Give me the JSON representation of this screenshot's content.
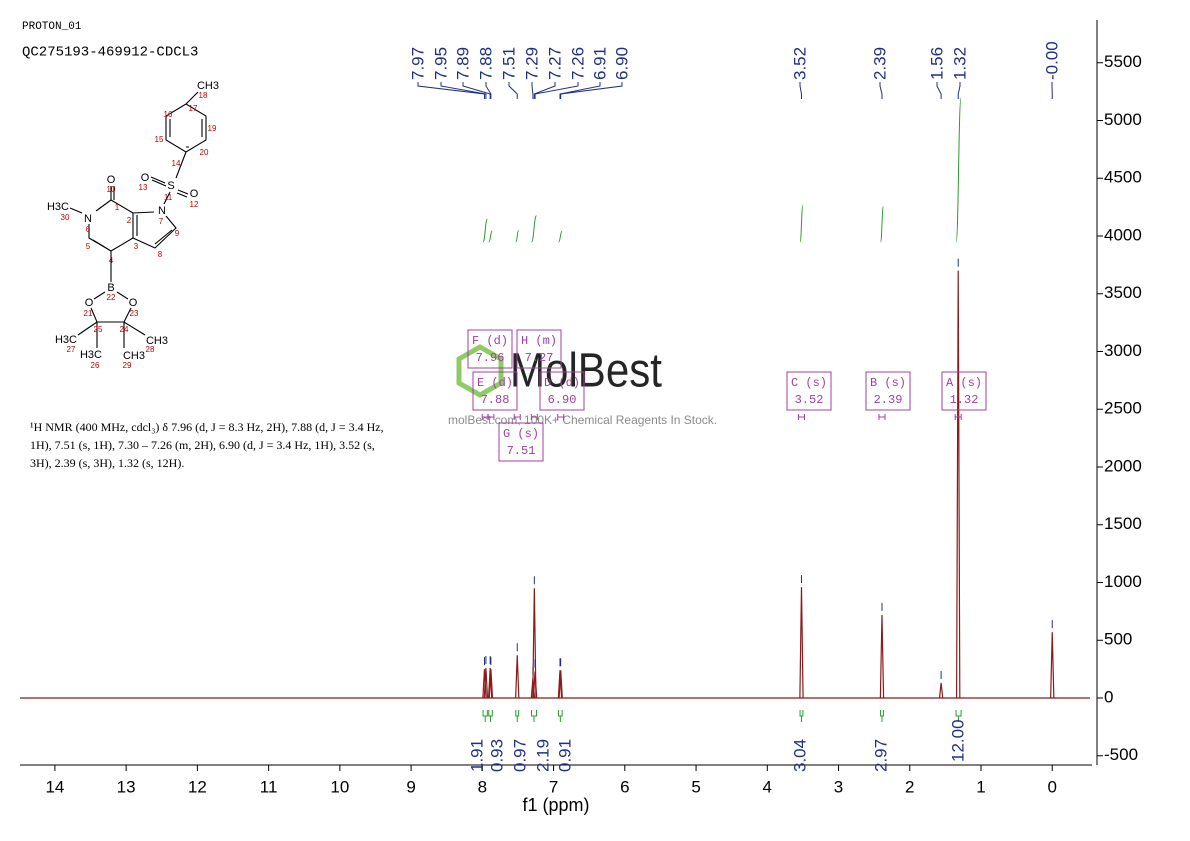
{
  "header": {
    "title": "PROTON_01",
    "sample": "QC275193-469912-CDCL3"
  },
  "structure": {
    "labels": [
      "CH3",
      "18",
      "17",
      "16",
      "19",
      "15",
      "20",
      "14",
      "O",
      "13",
      "S",
      "O",
      "11",
      "12",
      "O",
      "10",
      "1",
      "N",
      "7",
      "H3C",
      "30",
      "N",
      "6",
      "2",
      "9",
      "5",
      "3",
      "8",
      "4",
      "B",
      "22",
      "O",
      "O",
      "21",
      "23",
      "25",
      "24",
      "H3C",
      "CH3",
      "27",
      "28",
      "H3C",
      "CH3",
      "26",
      "29"
    ]
  },
  "description": {
    "lines": [
      "¹H NMR (400 MHz, cdcl₃) δ 7.96 (d, J = 8.3 Hz, 2H), 7.88 (d, J = 3.4 Hz,",
      "1H), 7.51 (s, 1H), 7.30 – 7.26 (m, 2H), 6.90 (d, J = 3.4 Hz, 1H), 3.52 (s,",
      "3H), 2.39 (s, 3H), 1.32 (s, 12H)."
    ]
  },
  "watermark": {
    "logo": "MolBest",
    "tagline": "molBest.com, 100K+ Chemical Reagents In Stock."
  },
  "chart_data": {
    "type": "nmr",
    "x_label": "f1 (ppm)",
    "xlim": [
      14.49,
      -0.53
    ],
    "xticks": [
      14,
      13,
      12,
      11,
      10,
      9,
      8,
      7,
      6,
      5,
      4,
      3,
      2,
      1,
      0
    ],
    "ylim": [
      -580,
      5870
    ],
    "yticks": [
      -500,
      0,
      500,
      1000,
      1500,
      2000,
      2500,
      3000,
      3500,
      4000,
      4500,
      5000,
      5500
    ],
    "color": "#8b1a1a",
    "label_color": "#1f2f86",
    "integral_color": "#2e9a2e",
    "multiplet_color": "#a040a0",
    "peaks": [
      {
        "ppm": 7.97,
        "label": "7.97",
        "height": 250
      },
      {
        "ppm": 7.95,
        "label": "7.95",
        "height": 260
      },
      {
        "ppm": 7.89,
        "label": "7.89",
        "height": 260
      },
      {
        "ppm": 7.88,
        "label": "7.88",
        "height": 250
      },
      {
        "ppm": 7.51,
        "label": "7.51",
        "height": 370
      },
      {
        "ppm": 7.29,
        "label": "7.29",
        "height": 170
      },
      {
        "ppm": 7.27,
        "label": "7.27",
        "height": 950
      },
      {
        "ppm": 7.26,
        "label": "7.26",
        "height": 230
      },
      {
        "ppm": 6.91,
        "label": "6.91",
        "height": 240
      },
      {
        "ppm": 6.9,
        "label": "6.90",
        "height": 240
      },
      {
        "ppm": 3.52,
        "label": "3.52",
        "height": 960
      },
      {
        "ppm": 2.39,
        "label": "2.39",
        "height": 720
      },
      {
        "ppm": 1.56,
        "label": "1.56",
        "height": 130
      },
      {
        "ppm": 1.32,
        "label": "1.32",
        "height": 3700
      },
      {
        "ppm": 0,
        "label": "-0.00",
        "height": 570
      }
    ],
    "integrals": [
      {
        "from": 7.99,
        "to": 7.93,
        "value": 1.91
      },
      {
        "from": 7.91,
        "to": 7.86,
        "value": 0.93
      },
      {
        "from": 7.53,
        "to": 7.49,
        "value": 0.97
      },
      {
        "from": 7.31,
        "to": 7.24,
        "value": 2.19
      },
      {
        "from": 6.93,
        "to": 6.88,
        "value": 0.91
      },
      {
        "from": 3.54,
        "to": 3.5,
        "value": 3.04
      },
      {
        "from": 2.41,
        "to": 2.37,
        "value": 2.97
      },
      {
        "from": 1.35,
        "to": 1.28,
        "value": {
          "value": 12,
          "label": "12.00"
        }
      }
    ],
    "multiplets": [
      {
        "name": "A (s)",
        "shift": 1.32
      },
      {
        "name": "B (s)",
        "shift": 2.39
      },
      {
        "name": "C (s)",
        "shift": 3.52
      },
      {
        "name": "D (d)",
        "shift": {
          "value": 6.9,
          "label": "6.90"
        }
      },
      {
        "name": "E (d)",
        "shift": 7.88
      },
      {
        "name": "F (d)",
        "shift": 7.96
      },
      {
        "name": "G (s)",
        "shift": 7.51
      },
      {
        "name": "H (m)",
        "shift": 7.27
      }
    ]
  }
}
